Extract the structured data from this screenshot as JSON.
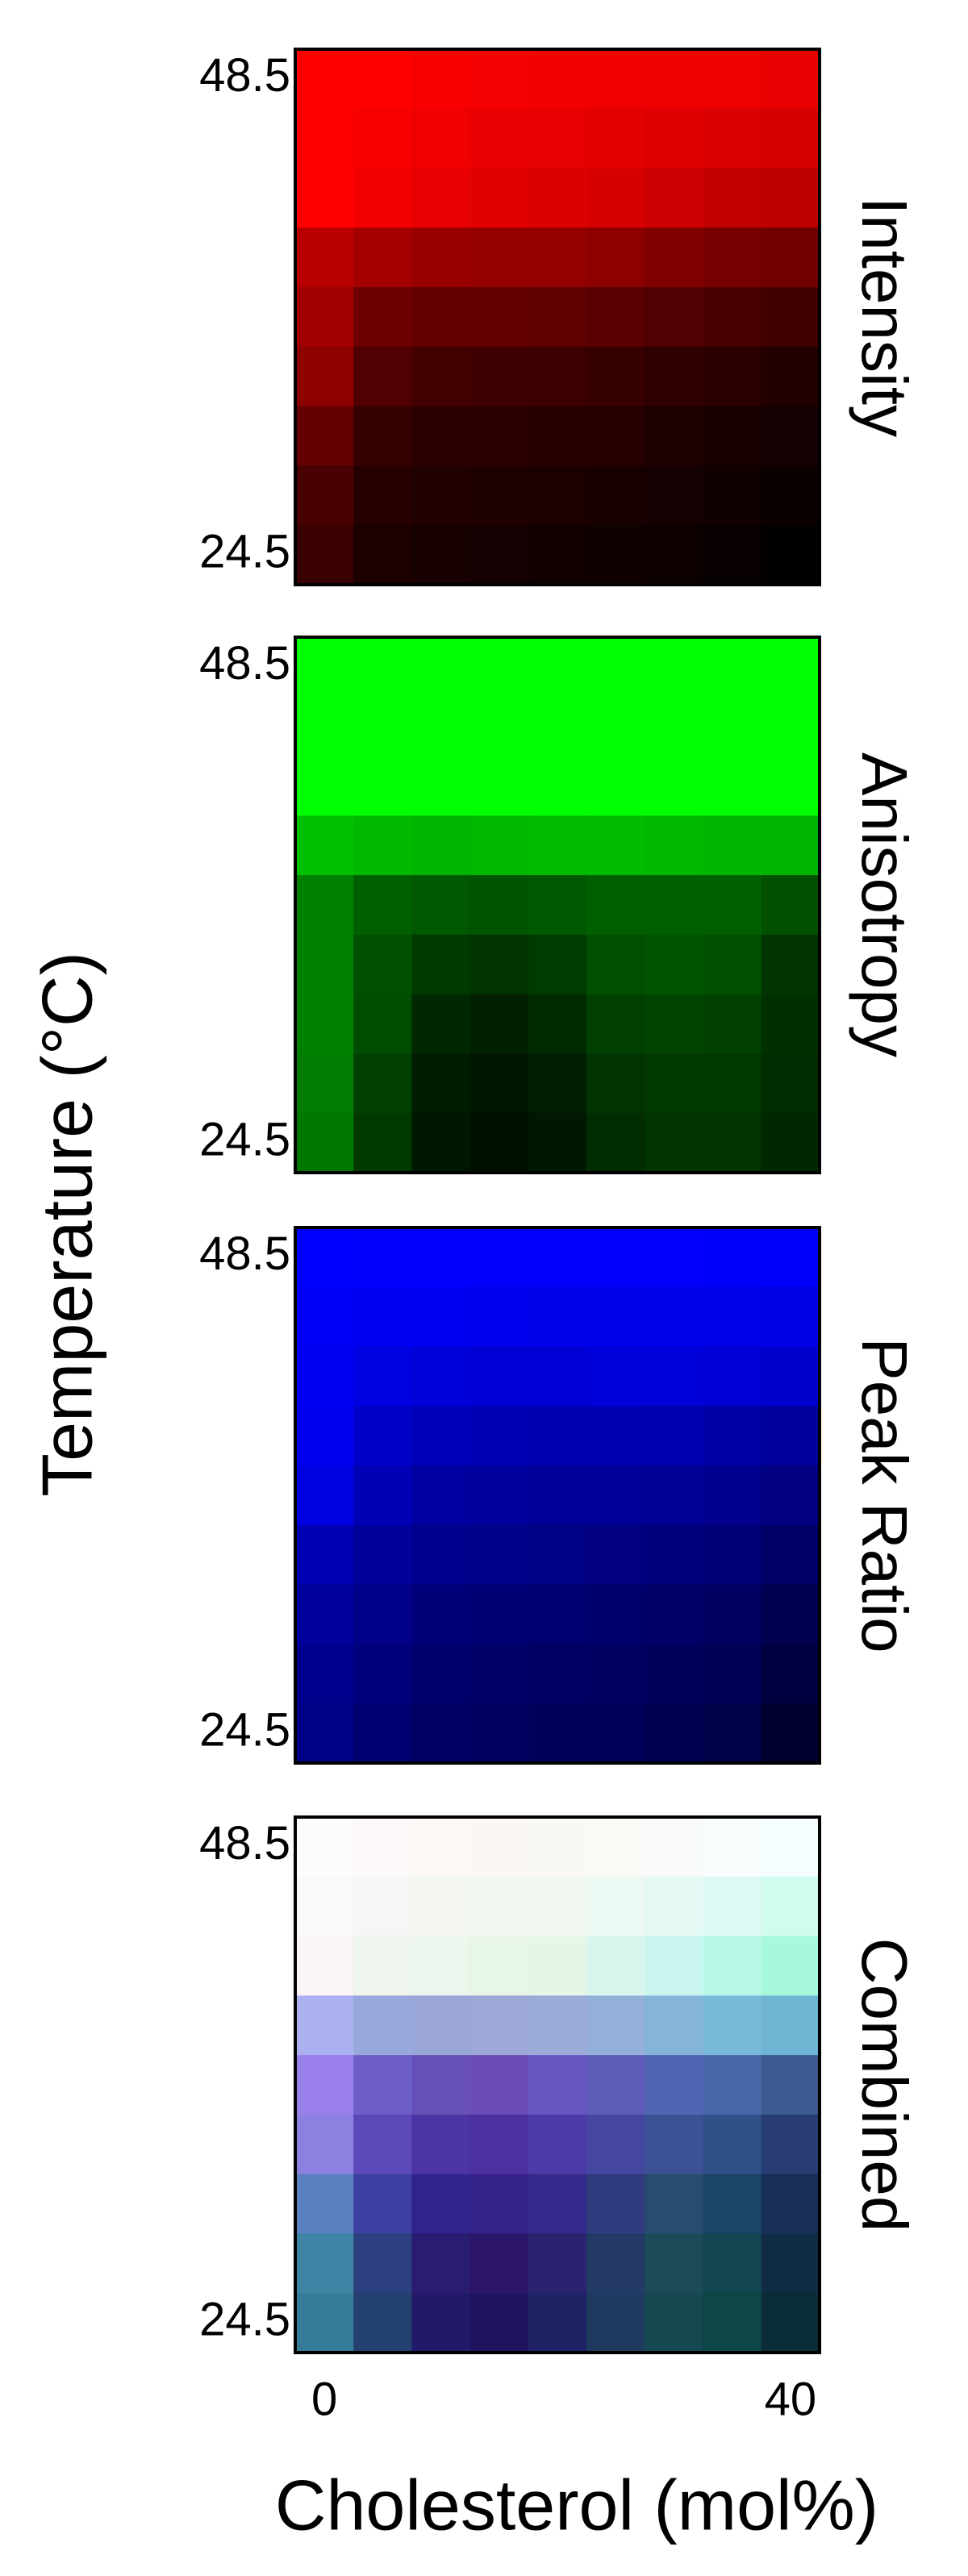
{
  "ylabel": "Temperature (°C)",
  "xlabel": "Cholesterol (mol%)",
  "chart_data": [
    {
      "type": "heatmap",
      "title": "Intensity",
      "ylim": [
        23,
        50
      ],
      "yticks": [
        48.5,
        24.5
      ],
      "cells": [
        [
          "#ff0000",
          "#fe0000",
          "#f80000",
          "#f40000",
          "#f20000",
          "#f00000",
          "#ee0000",
          "#ec0000",
          "#e80000"
        ],
        [
          "#ff0000",
          "#f60000",
          "#f00000",
          "#ea0000",
          "#e60000",
          "#e20000",
          "#de0000",
          "#d80000",
          "#d40000"
        ],
        [
          "#ff0000",
          "#f20000",
          "#e80000",
          "#e00000",
          "#dc0000",
          "#d60000",
          "#cc0000",
          "#c20000",
          "#bc0000"
        ],
        [
          "#b80000",
          "#a40000",
          "#980000",
          "#940000",
          "#920000",
          "#8c0000",
          "#800000",
          "#780000",
          "#700000"
        ],
        [
          "#a00000",
          "#6c0000",
          "#640000",
          "#620000",
          "#600000",
          "#5a0000",
          "#500000",
          "#480000",
          "#400000"
        ],
        [
          "#8c0000",
          "#500000",
          "#420000",
          "#3e0000",
          "#3c0000",
          "#360000",
          "#300000",
          "#2a0000",
          "#220000"
        ],
        [
          "#640000",
          "#360000",
          "#2c0000",
          "#2a0000",
          "#280000",
          "#240000",
          "#1e0000",
          "#180000",
          "#140000"
        ],
        [
          "#480000",
          "#260000",
          "#200000",
          "#1e0000",
          "#1c0000",
          "#180000",
          "#140000",
          "#100000",
          "#0a0000"
        ],
        [
          "#380000",
          "#1c0000",
          "#160000",
          "#140000",
          "#120000",
          "#100000",
          "#0c0000",
          "#080000",
          "#020000"
        ]
      ]
    },
    {
      "type": "heatmap",
      "title": "Anisotropy",
      "ylim": [
        23,
        50
      ],
      "yticks": [
        48.5,
        24.5
      ],
      "cells": [
        [
          "#00ff00",
          "#00ff00",
          "#00ff00",
          "#00ff00",
          "#00ff00",
          "#00ff00",
          "#00ff00",
          "#00ff00",
          "#00ff00"
        ],
        [
          "#00ff00",
          "#00ff00",
          "#00ff00",
          "#00ff00",
          "#00ff00",
          "#00ff00",
          "#00ff00",
          "#00ff00",
          "#00ff00"
        ],
        [
          "#00ff00",
          "#00ff00",
          "#00ff00",
          "#00ff00",
          "#00ff00",
          "#00ff00",
          "#00ff00",
          "#00ff00",
          "#00ff00"
        ],
        [
          "#00c000",
          "#00b800",
          "#00b400",
          "#00b800",
          "#00bc00",
          "#00bc00",
          "#00b800",
          "#00b400",
          "#00b400"
        ],
        [
          "#008000",
          "#006000",
          "#005800",
          "#005400",
          "#005800",
          "#006000",
          "#006000",
          "#006000",
          "#005000"
        ],
        [
          "#008000",
          "#005000",
          "#003a00",
          "#003400",
          "#003c00",
          "#005000",
          "#005400",
          "#005000",
          "#003400"
        ],
        [
          "#008000",
          "#004c00",
          "#002800",
          "#002000",
          "#002a00",
          "#004000",
          "#004400",
          "#004000",
          "#003000"
        ],
        [
          "#007c00",
          "#004000",
          "#001c00",
          "#001600",
          "#001e00",
          "#003400",
          "#003800",
          "#003800",
          "#002c00"
        ],
        [
          "#007800",
          "#003800",
          "#001800",
          "#001000",
          "#001800",
          "#002c00",
          "#003400",
          "#003400",
          "#002800"
        ]
      ]
    },
    {
      "type": "heatmap",
      "title": "Peak Ratio",
      "ylim": [
        23,
        50
      ],
      "yticks": [
        48.5,
        24.5
      ],
      "cells": [
        [
          "#0000ff",
          "#0000fc",
          "#0000fc",
          "#0000fb",
          "#0000fb",
          "#0000fb",
          "#0000fb",
          "#0000fa",
          "#0000fa"
        ],
        [
          "#0000f6",
          "#0000f2",
          "#0000f0",
          "#0000ec",
          "#0000ea",
          "#0000ea",
          "#0000ea",
          "#0000e8",
          "#0000e4"
        ],
        [
          "#0000f0",
          "#0000e0",
          "#0000d8",
          "#0000d4",
          "#0000d4",
          "#0000d8",
          "#0000d8",
          "#0000d4",
          "#0000cc"
        ],
        [
          "#0000ee",
          "#0000c8",
          "#0000b8",
          "#0000b4",
          "#0000b0",
          "#0000b0",
          "#0000ae",
          "#0000a8",
          "#00009c"
        ],
        [
          "#0000e0",
          "#0000b4",
          "#0000a0",
          "#00009c",
          "#000098",
          "#000096",
          "#000092",
          "#00008c",
          "#000080"
        ],
        [
          "#0000b4",
          "#00009a",
          "#00008c",
          "#000088",
          "#000084",
          "#000080",
          "#00007c",
          "#000076",
          "#000068"
        ],
        [
          "#00009c",
          "#000088",
          "#000078",
          "#000074",
          "#000070",
          "#00006c",
          "#000068",
          "#000060",
          "#000050"
        ],
        [
          "#00008c",
          "#00007c",
          "#00006c",
          "#000068",
          "#000064",
          "#000060",
          "#00005c",
          "#000054",
          "#000040"
        ],
        [
          "#000084",
          "#000070",
          "#000064",
          "#000060",
          "#00005c",
          "#000058",
          "#000050",
          "#000048",
          "#000030"
        ]
      ]
    },
    {
      "type": "heatmap",
      "title": "Combined",
      "ylim": [
        23,
        50
      ],
      "yticks": [
        48.5,
        24.5
      ],
      "xlim": [
        -2.5,
        42.5
      ],
      "xticks": [
        0,
        40
      ],
      "cells": [
        [
          "#fdfbfb",
          "#fcf9f8",
          "#fbf8f6",
          "#fbf8f4",
          "#faf8f4",
          "#faf9f6",
          "#f8fbfa",
          "#f6fdfc",
          "#f4fefe"
        ],
        [
          "#fbf8f8",
          "#f6f6f4",
          "#f4f6f2",
          "#f2f6f0",
          "#f0f8f0",
          "#ecf8f2",
          "#e4f8f4",
          "#dcfaf4",
          "#d0fcf0"
        ],
        [
          "#fbf4f4",
          "#eef6ee",
          "#ecf6ec",
          "#e8f6e8",
          "#e4f6e6",
          "#d8f6ee",
          "#c8f6ee",
          "#b8f8e8",
          "#a8f8dc"
        ],
        [
          "#aab0f0",
          "#98a8dc",
          "#9aa6d8",
          "#9ca8d8",
          "#9caad8",
          "#94b0d8",
          "#84b4d8",
          "#78b8d8",
          "#70b4d4"
        ],
        [
          "#9a80ea",
          "#6e5ec8",
          "#6650b8",
          "#6a4cb6",
          "#6856c0",
          "#5e5cb8",
          "#5066b4",
          "#4868a8",
          "#3c5a90"
        ],
        [
          "#8c80e0",
          "#5c48b8",
          "#4c34a4",
          "#4c30a0",
          "#4c3aa8",
          "#4446a0",
          "#3c5294",
          "#30508a",
          "#283c74"
        ],
        [
          "#5a80c0",
          "#3c40a0",
          "#30248c",
          "#342286",
          "#342a8c",
          "#303c7e",
          "#284c70",
          "#1c4466",
          "#183058"
        ],
        [
          "#3e82a4",
          "#2c4080",
          "#2a1c70",
          "#2c166a",
          "#2a2470",
          "#243a66",
          "#1c4a58",
          "#124650",
          "#102c44"
        ],
        [
          "#367c98",
          "#244070",
          "#201868",
          "#201460",
          "#202266",
          "#1e3a5e",
          "#164852",
          "#0c4646",
          "#0a2c36"
        ]
      ]
    }
  ]
}
